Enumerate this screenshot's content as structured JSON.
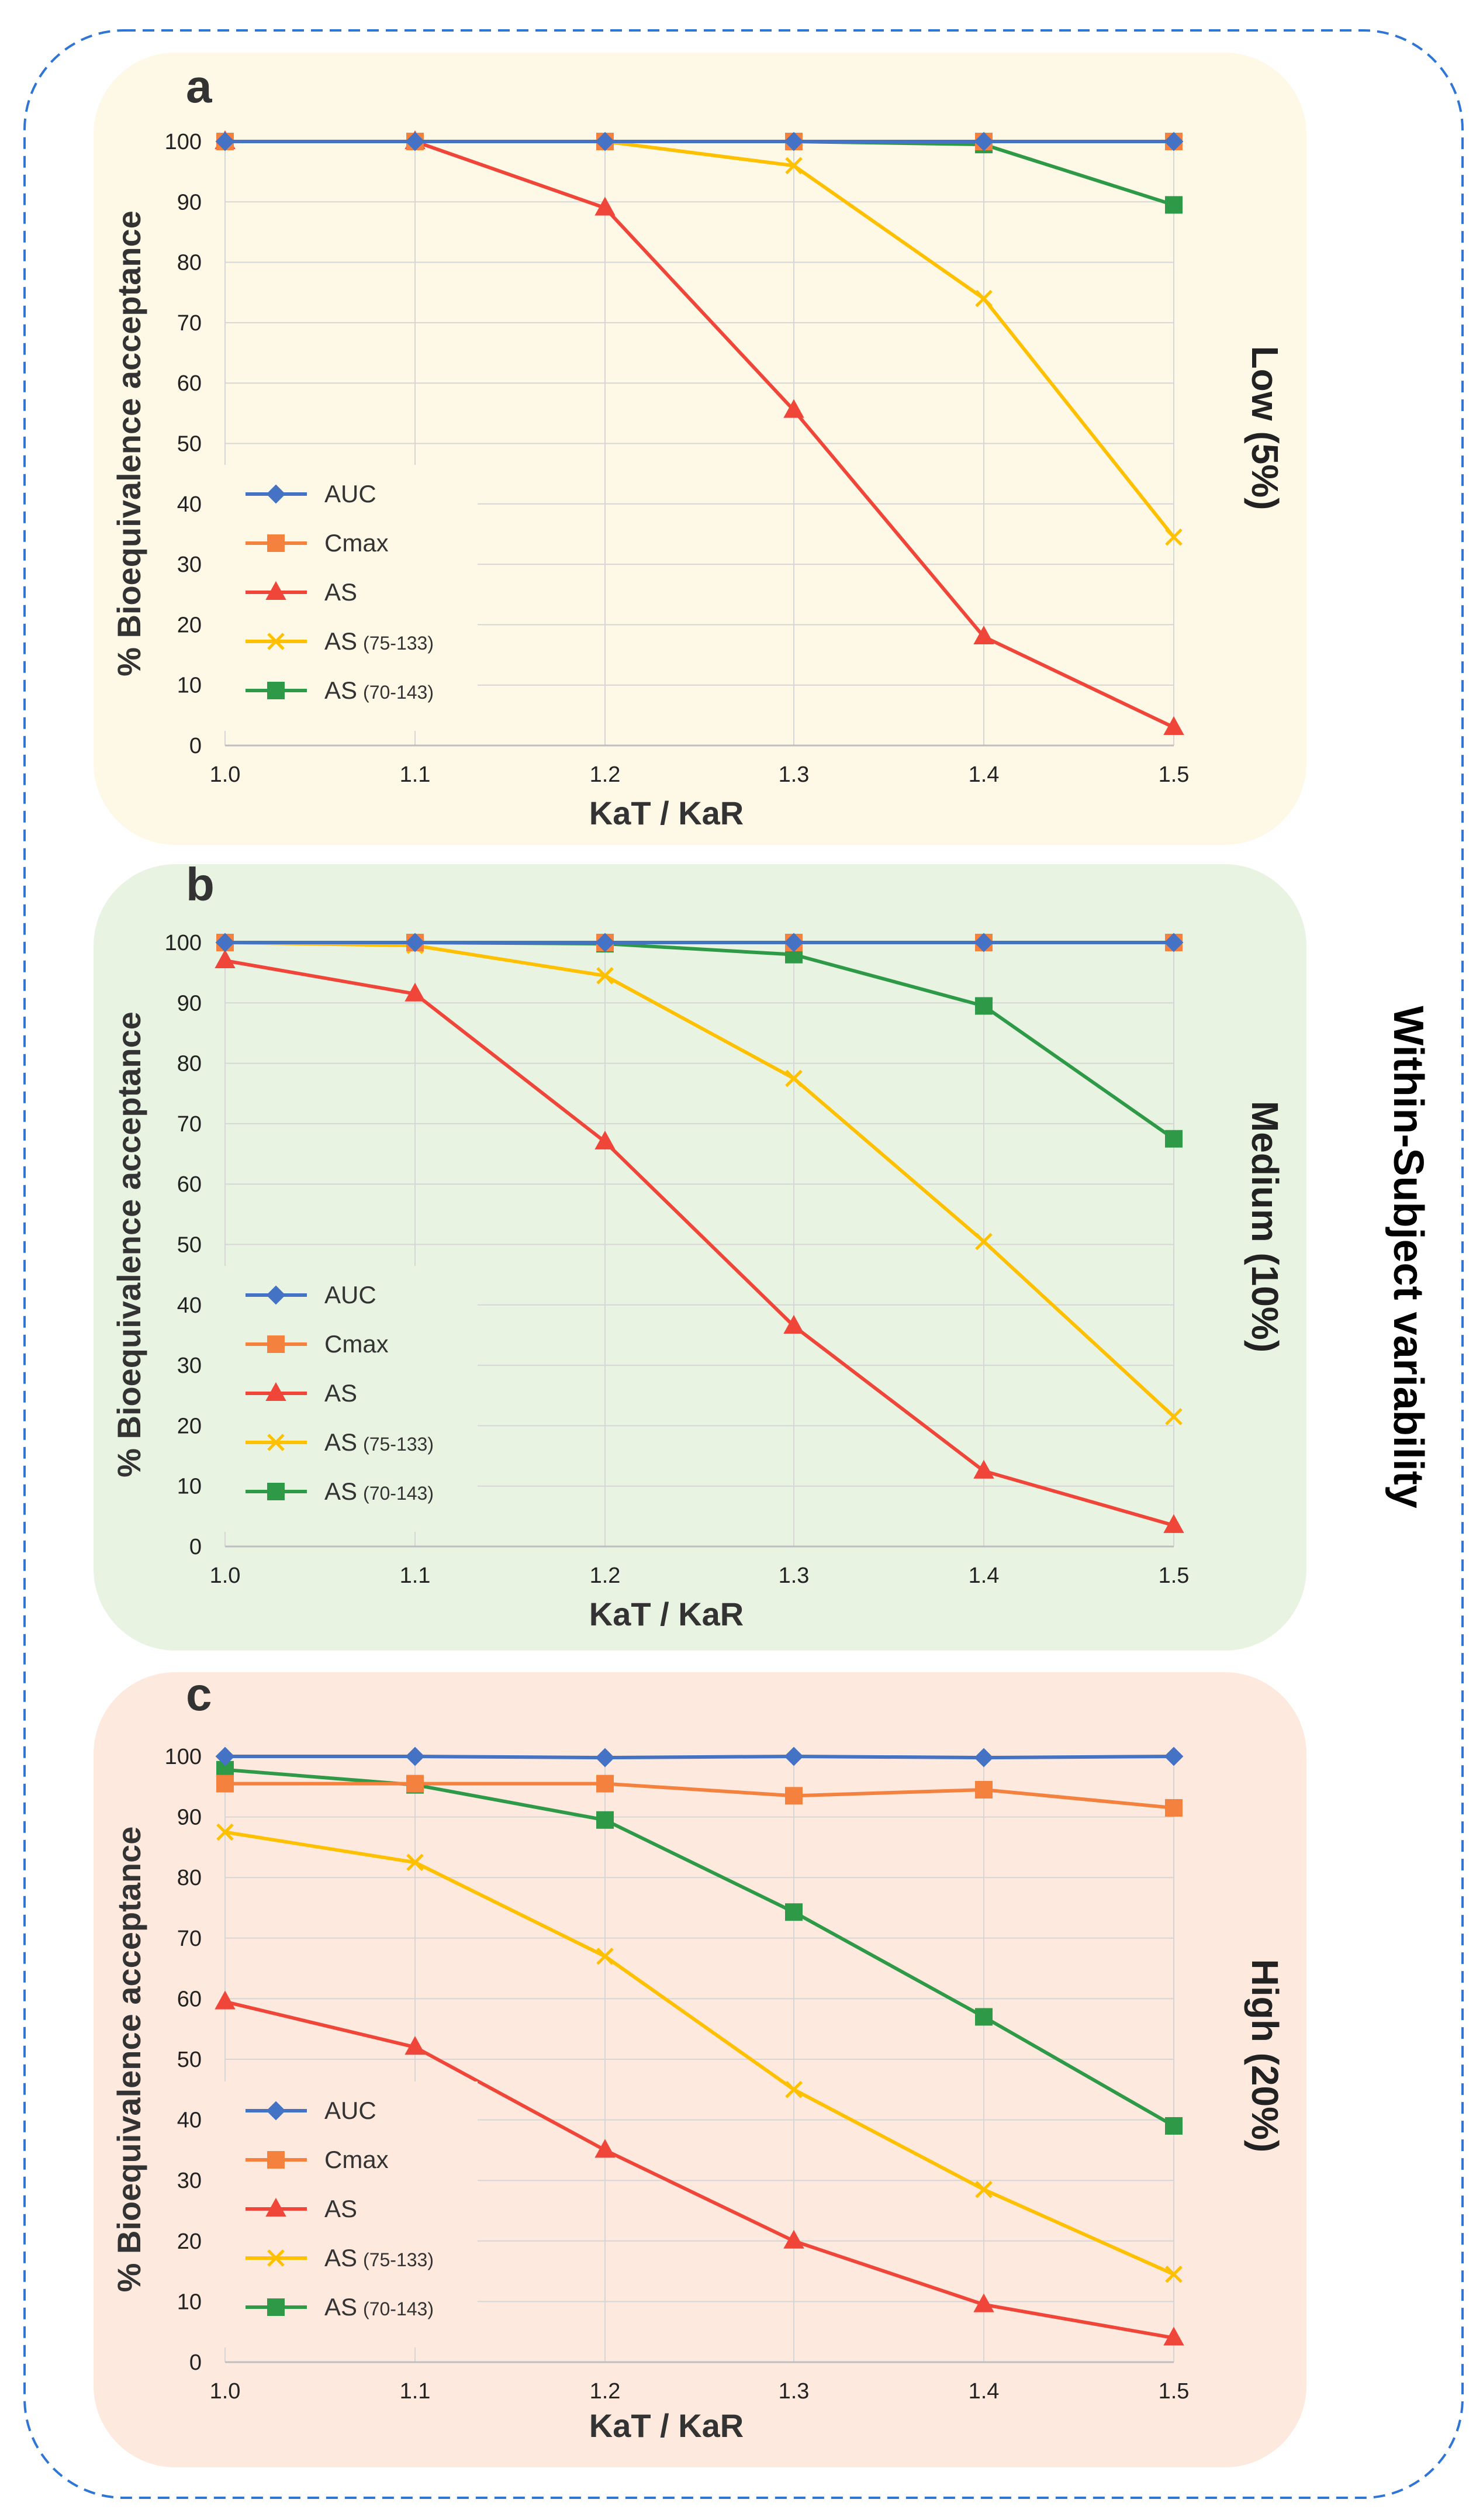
{
  "figure": {
    "main_label": "Within-Subject variability"
  },
  "colors": {
    "AUC": "#4472C4",
    "Cmax": "#F4813D",
    "AS": "#F0463A",
    "AS (75-133)": "#FFC000",
    "AS (70-143)": "#2E9A48",
    "panel_a_bg": "#FEF8E6",
    "panel_b_bg": "#E8F3E2",
    "panel_c_bg": "#FDE9DD",
    "frame": "#2E75D6"
  },
  "legend_items": [
    {
      "name": "AUC",
      "label": "AUC",
      "sub": "",
      "marker": "diamond"
    },
    {
      "name": "Cmax",
      "label": "Cmax",
      "sub": "",
      "marker": "square"
    },
    {
      "name": "AS",
      "label": "AS",
      "sub": "",
      "marker": "triangle"
    },
    {
      "name": "AS (75-133)",
      "label": "AS",
      "sub": "(75-133)",
      "marker": "x"
    },
    {
      "name": "AS (70-143)",
      "label": "AS",
      "sub": "(70-143)",
      "marker": "square"
    }
  ],
  "chart_data": [
    {
      "panel": "a",
      "type": "line",
      "side_label": "Low (5%)",
      "x": [
        1.0,
        1.1,
        1.2,
        1.3,
        1.4,
        1.5
      ],
      "x_tick_labels": [
        "1.0",
        "1.1",
        "1.2",
        "1.3",
        "1.4",
        "1.5"
      ],
      "xlabel": "KaT / KaR",
      "ylabel": "% Bioequivalence acceptance",
      "ylim": [
        0,
        100
      ],
      "y_ticks": [
        0,
        10,
        20,
        30,
        40,
        50,
        60,
        70,
        80,
        90,
        100
      ],
      "series": [
        {
          "name": "AUC",
          "values": [
            100,
            100,
            100,
            100,
            100,
            100
          ]
        },
        {
          "name": "Cmax",
          "values": [
            100,
            100,
            100,
            100,
            100,
            100
          ]
        },
        {
          "name": "AS",
          "values": [
            100,
            100,
            89,
            55.5,
            18,
            3
          ]
        },
        {
          "name": "AS (75-133)",
          "values": [
            100,
            100,
            100,
            96,
            74,
            34.5
          ]
        },
        {
          "name": "AS (70-143)",
          "values": [
            100,
            100,
            100,
            100,
            99.5,
            89.5
          ]
        }
      ]
    },
    {
      "panel": "b",
      "type": "line",
      "side_label": "Medium (10%)",
      "x": [
        1.0,
        1.1,
        1.2,
        1.3,
        1.4,
        1.5
      ],
      "x_tick_labels": [
        "1.0",
        "1.1",
        "1.2",
        "1.3",
        "1.4",
        "1.5"
      ],
      "xlabel": "KaT / KaR",
      "ylabel": "% Bioequivalence acceptance",
      "ylim": [
        0,
        100
      ],
      "y_ticks": [
        0,
        10,
        20,
        30,
        40,
        50,
        60,
        70,
        80,
        90,
        100
      ],
      "series": [
        {
          "name": "AUC",
          "values": [
            100,
            100,
            100,
            100,
            100,
            100
          ]
        },
        {
          "name": "Cmax",
          "values": [
            100,
            100,
            100,
            100,
            100,
            100
          ]
        },
        {
          "name": "AS",
          "values": [
            97,
            91.5,
            67,
            36.5,
            12.5,
            3.5
          ]
        },
        {
          "name": "AS (75-133)",
          "values": [
            100,
            99.5,
            94.5,
            77.5,
            50.5,
            21.5
          ]
        },
        {
          "name": "AS (70-143)",
          "values": [
            100,
            100,
            99.8,
            98,
            89.5,
            67.5
          ]
        }
      ]
    },
    {
      "panel": "c",
      "type": "line",
      "side_label": "High (20%)",
      "x": [
        1.0,
        1.1,
        1.2,
        1.3,
        1.4,
        1.5
      ],
      "x_tick_labels": [
        "1.0",
        "1.1",
        "1.2",
        "1.3",
        "1.4",
        "1.5"
      ],
      "xlabel": "KaT / KaR",
      "ylabel": "% Bioequivalence acceptance",
      "ylim": [
        0,
        100
      ],
      "y_ticks": [
        0,
        10,
        20,
        30,
        40,
        50,
        60,
        70,
        80,
        90,
        100
      ],
      "series": [
        {
          "name": "AUC",
          "values": [
            100,
            100,
            99.8,
            100,
            99.8,
            100
          ]
        },
        {
          "name": "Cmax",
          "values": [
            95.5,
            95.5,
            95.5,
            93.5,
            94.5,
            91.5
          ]
        },
        {
          "name": "AS",
          "values": [
            59.5,
            52,
            35,
            20,
            9.5,
            4
          ]
        },
        {
          "name": "AS (75-133)",
          "values": [
            87.5,
            82.5,
            67,
            45,
            28.5,
            14.5
          ]
        },
        {
          "name": "AS (70-143)",
          "values": [
            97.8,
            95.3,
            89.5,
            74.3,
            57,
            39
          ]
        }
      ]
    }
  ]
}
